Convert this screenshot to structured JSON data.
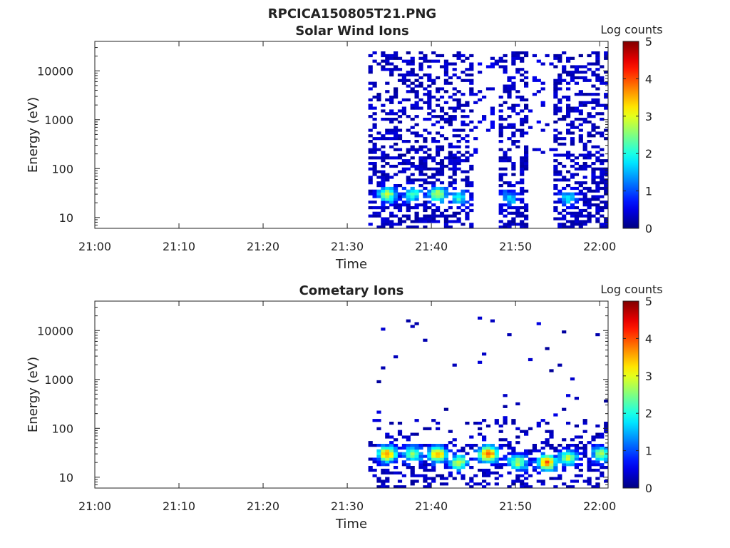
{
  "figure_title": "RPCICA150805T21.PNG",
  "chart_data": [
    {
      "type": "heatmap",
      "title": "Solar Wind Ions",
      "xlabel": "Time",
      "ylabel": "Energy (eV)",
      "x_ticks": [
        "21:00",
        "21:10",
        "21:20",
        "21:30",
        "21:40",
        "21:50",
        "22:00"
      ],
      "y_ticks": [
        "10",
        "100",
        "1000",
        "10000"
      ],
      "y_scale": "log",
      "ylim": [
        6,
        40000
      ],
      "xlim": [
        "21:00",
        "22:01"
      ],
      "colorbar": {
        "label": "Log counts",
        "ticks": [
          "0",
          "1",
          "2",
          "3",
          "4",
          "5"
        ],
        "range": [
          0,
          5
        ],
        "colormap": "jet"
      },
      "data_start": "21:32.5",
      "data_end": "22:01",
      "gaps": [
        [
          "21:45",
          "21:48"
        ],
        [
          "21:51.5",
          "21:54.5"
        ]
      ],
      "hotspots": [
        {
          "time": "21:34.5",
          "energy_eV": 30,
          "log_counts": 2.8
        },
        {
          "time": "21:37.5",
          "energy_eV": 30,
          "log_counts": 2.3
        },
        {
          "time": "21:40.5",
          "energy_eV": 30,
          "log_counts": 2.9
        },
        {
          "time": "21:43",
          "energy_eV": 25,
          "log_counts": 2.0
        },
        {
          "time": "21:49",
          "energy_eV": 25,
          "log_counts": 1.6
        },
        {
          "time": "21:56",
          "energy_eV": 25,
          "log_counts": 1.8
        }
      ]
    },
    {
      "type": "heatmap",
      "title": "Cometary Ions",
      "xlabel": "Time",
      "ylabel": "Energy (eV)",
      "x_ticks": [
        "21:00",
        "21:10",
        "21:20",
        "21:30",
        "21:40",
        "21:50",
        "22:00"
      ],
      "y_ticks": [
        "10",
        "100",
        "1000",
        "10000"
      ],
      "y_scale": "log",
      "ylim": [
        6,
        40000
      ],
      "xlim": [
        "21:00",
        "22:01"
      ],
      "colorbar": {
        "label": "Log counts",
        "ticks": [
          "0",
          "1",
          "2",
          "3",
          "4",
          "5"
        ],
        "range": [
          0,
          5
        ],
        "colormap": "jet"
      },
      "data_start": "21:32.5",
      "data_end": "22:01",
      "hotspots": [
        {
          "time": "21:34.5",
          "energy_eV": 30,
          "log_counts": 3.7
        },
        {
          "time": "21:37.5",
          "energy_eV": 30,
          "log_counts": 2.7
        },
        {
          "time": "21:40.5",
          "energy_eV": 30,
          "log_counts": 3.6
        },
        {
          "time": "21:43",
          "energy_eV": 20,
          "log_counts": 2.8
        },
        {
          "time": "21:46.5",
          "energy_eV": 30,
          "log_counts": 4.1
        },
        {
          "time": "21:50",
          "energy_eV": 20,
          "log_counts": 2.8
        },
        {
          "time": "21:53.5",
          "energy_eV": 20,
          "log_counts": 3.8
        },
        {
          "time": "21:56",
          "energy_eV": 25,
          "log_counts": 2.8
        },
        {
          "time": "22:00",
          "energy_eV": 30,
          "log_counts": 2.8
        }
      ]
    }
  ]
}
